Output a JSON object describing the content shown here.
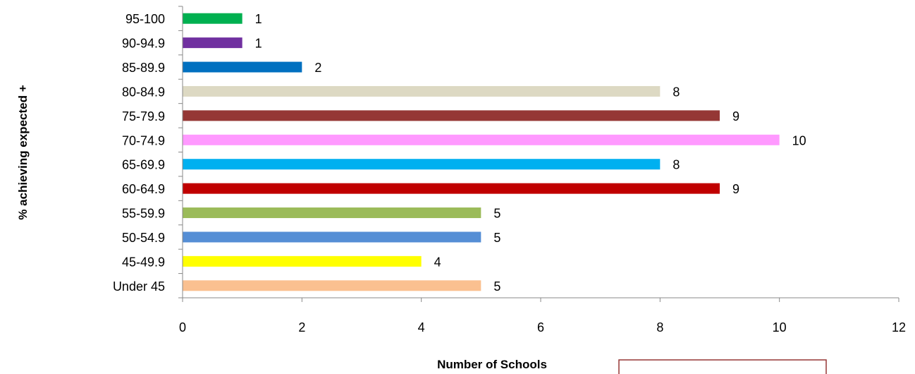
{
  "chart_data": {
    "type": "bar",
    "orientation": "horizontal",
    "categories": [
      "Under 45",
      "45-49.9",
      "50-54.9",
      "55-59.9",
      "60-64.9",
      "65-69.9",
      "70-74.9",
      "75-79.9",
      "80-84.9",
      "85-89.9",
      "90-94.9",
      "95-100"
    ],
    "values": [
      5,
      4,
      5,
      5,
      9,
      8,
      10,
      9,
      8,
      2,
      1,
      1
    ],
    "colors": [
      "#FAC090",
      "#FFFF00",
      "#558ED5",
      "#9BBB59",
      "#C00000",
      "#00B0F0",
      "#FF99FF",
      "#953735",
      "#DDD9C3",
      "#0070C0",
      "#7030A0",
      "#00B050"
    ],
    "xlabel": "Number of Schools",
    "ylabel": "% achieving expected +",
    "xlim": [
      0,
      12
    ],
    "xticks": [
      0,
      2,
      4,
      6,
      8,
      10,
      12
    ],
    "grid": false,
    "data_labels": true
  },
  "decoration": {
    "box_color": "#953735"
  }
}
